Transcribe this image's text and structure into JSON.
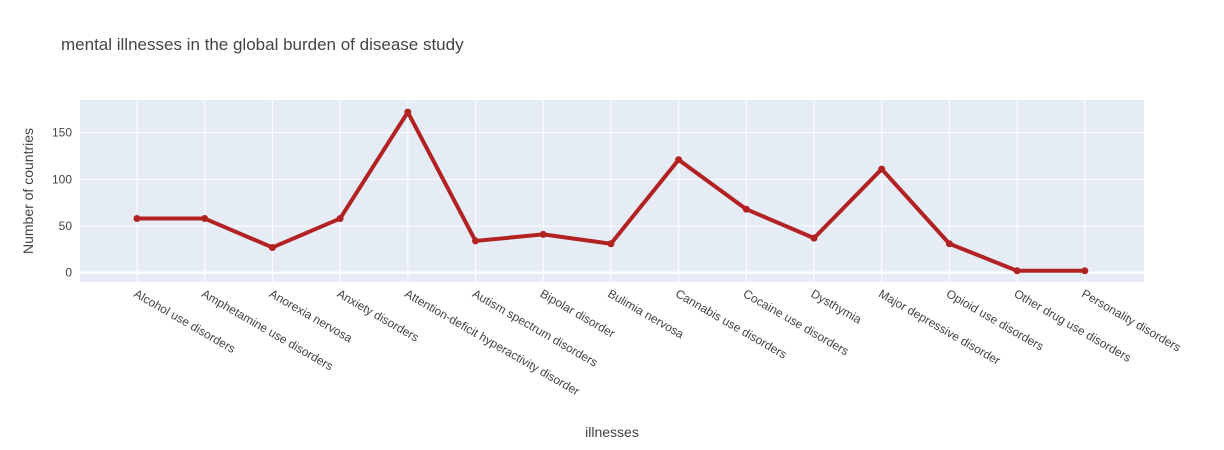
{
  "chart_data": {
    "type": "line",
    "title": "mental illnesses in the global burden of disease study",
    "xlabel": "illnesses",
    "ylabel": "Number of countries",
    "categories": [
      "Alcohol use disorders",
      "Amphetamine use disorders",
      "Anorexia nervosa",
      "Anxiety disorders",
      "Attention-deficit hyperactivity disorder",
      "Autism spectrum disorders",
      "Bipolar disorder",
      "Bulimia nervosa",
      "Cannabis use disorders",
      "Cocaine use disorders",
      "Dysthymia",
      "Major depressive disorder",
      "Opioid use disorders",
      "Other drug use disorders",
      "Personality disorders"
    ],
    "series": [
      {
        "values": [
          58,
          58,
          27,
          58,
          172,
          34,
          41,
          31,
          121,
          68,
          37,
          111,
          31,
          2,
          2
        ]
      }
    ],
    "ylim": [
      -10,
      185
    ],
    "yticks": [
      0,
      50,
      100,
      150
    ],
    "grid": true,
    "line_color": "#b22222",
    "plot_bg": "#e5ecf6"
  }
}
